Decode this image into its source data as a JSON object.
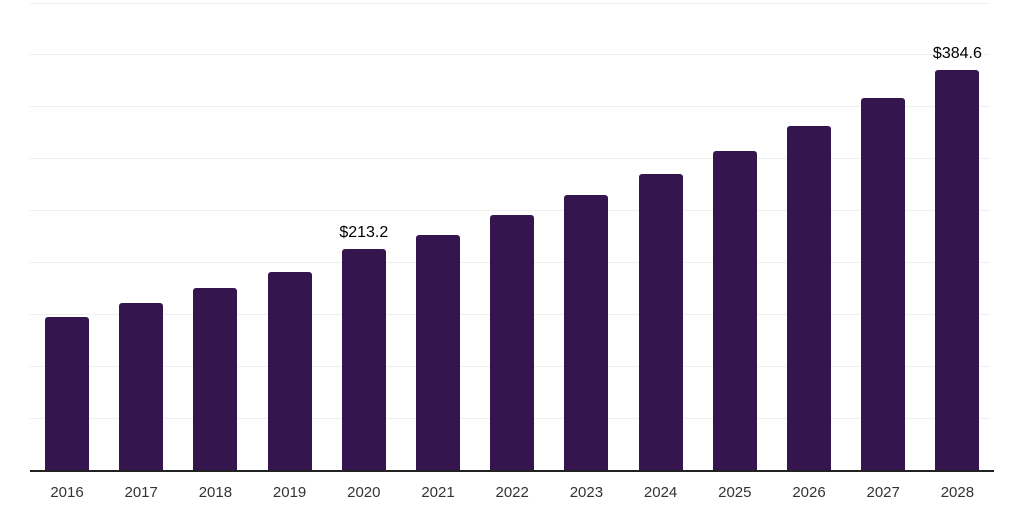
{
  "chart_data": {
    "type": "bar",
    "title": "",
    "xlabel": "",
    "ylabel": "",
    "categories": [
      "2016",
      "2017",
      "2018",
      "2019",
      "2020",
      "2021",
      "2022",
      "2023",
      "2024",
      "2025",
      "2026",
      "2027",
      "2028"
    ],
    "values": [
      147.6,
      161.0,
      174.9,
      190.6,
      213.2,
      226.2,
      245.4,
      264.4,
      285.2,
      307.3,
      331.4,
      357.8,
      384.6
    ],
    "data_labels": {
      "2020": "$213.2",
      "2028": "$384.6"
    },
    "ylim": [
      0,
      450
    ],
    "gridline_step": 50,
    "grid": true,
    "legend": false,
    "bar_color": "#34154e",
    "gridline_color": "#efefef",
    "axis_line_color": "#222222",
    "tick_label_color": "#333333",
    "data_label_color": "#000000"
  }
}
